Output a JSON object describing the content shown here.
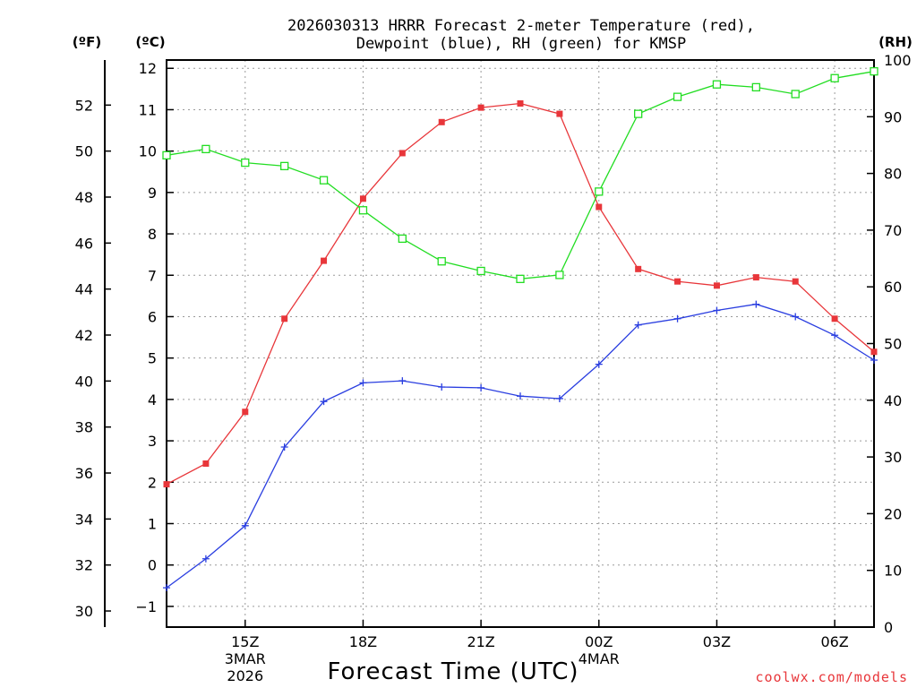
{
  "chart_data": {
    "type": "line",
    "title_line1": "2026030313 HRRR Forecast 2-meter Temperature (red),",
    "title_line2": "Dewpoint (blue), RH (green) for KMSP",
    "xlabel": "Forecast Time (UTC)",
    "watermark": "coolwx.com/models",
    "unit_labels": {
      "fahrenheit": "(ºF)",
      "celsius": "(ºC)",
      "rh": "(RH)"
    },
    "x_hours": [
      13,
      14,
      15,
      16,
      17,
      18,
      19,
      20,
      21,
      22,
      23,
      24,
      25,
      26,
      27,
      28,
      29,
      30,
      31
    ],
    "xlim": [
      13,
      31
    ],
    "x_ticks": [
      {
        "hour": 15,
        "label": "15Z",
        "sub1": "3MAR",
        "sub2": "2026"
      },
      {
        "hour": 18,
        "label": "18Z"
      },
      {
        "hour": 21,
        "label": "21Z"
      },
      {
        "hour": 24,
        "label": "00Z",
        "sub1": "4MAR"
      },
      {
        "hour": 27,
        "label": "03Z"
      },
      {
        "hour": 30,
        "label": "06Z"
      }
    ],
    "y_celsius": {
      "ylim": [
        -1.5,
        12.2
      ],
      "ticks": [
        -1,
        0,
        1,
        2,
        3,
        4,
        5,
        6,
        7,
        8,
        9,
        10,
        11,
        12
      ]
    },
    "y_fahrenheit": {
      "ticks": [
        30,
        32,
        34,
        36,
        38,
        40,
        42,
        44,
        46,
        48,
        50,
        52
      ]
    },
    "y_rh": {
      "ylim": [
        0,
        100
      ],
      "ticks": [
        0,
        10,
        20,
        30,
        40,
        50,
        60,
        70,
        80,
        90,
        100
      ]
    },
    "series": [
      {
        "name": "2-meter Temperature",
        "units": "°C",
        "color": "#e8363a",
        "marker": "filled-square",
        "values": [
          1.95,
          2.45,
          3.7,
          5.95,
          7.35,
          8.85,
          9.95,
          10.7,
          11.05,
          11.15,
          10.9,
          8.65,
          7.15,
          6.85,
          6.75,
          6.95,
          6.85,
          5.95,
          5.15
        ]
      },
      {
        "name": "Dewpoint",
        "units": "°C",
        "color": "#2a3ee0",
        "marker": "plus",
        "values": [
          -0.55,
          0.15,
          0.95,
          2.85,
          3.95,
          4.4,
          4.45,
          4.3,
          4.28,
          4.08,
          4.02,
          4.85,
          5.8,
          5.95,
          6.15,
          6.3,
          6.0,
          5.55,
          4.95
        ]
      },
      {
        "name": "Relative Humidity",
        "units": "%",
        "color": "#22dd22",
        "marker": "open-square",
        "values": [
          83.2,
          84.3,
          81.9,
          81.3,
          78.8,
          73.5,
          68.5,
          64.5,
          62.8,
          61.4,
          62.1,
          76.8,
          90.5,
          93.5,
          95.7,
          95.2,
          94.0,
          96.8,
          98.0
        ]
      }
    ]
  }
}
